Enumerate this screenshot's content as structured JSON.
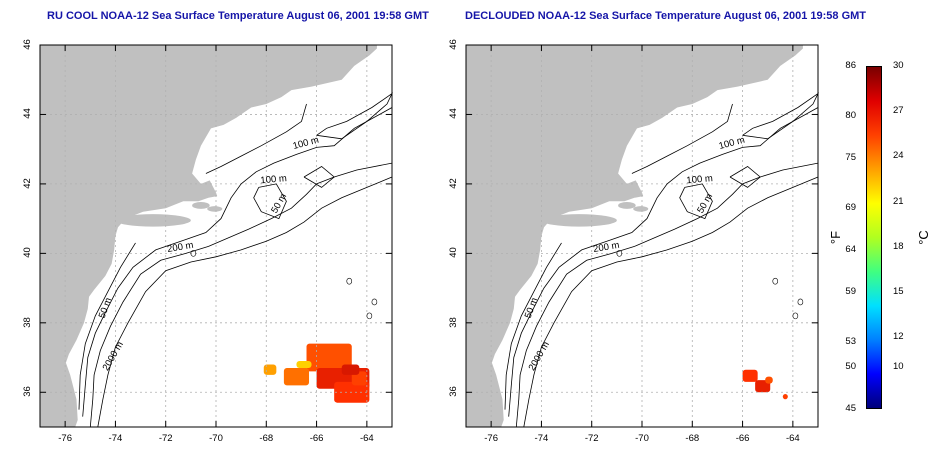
{
  "panels": [
    {
      "title": "RU COOL NOAA-12 Sea Surface Temperature August 06, 2001 19:58 GMT",
      "title_color": "#1515a8",
      "contour_labels": [
        "100 m",
        "100 m",
        "50 m",
        "200 m",
        "50 m",
        "2000 m"
      ],
      "x_ticks": [
        "-76",
        "-74",
        "-72",
        "-70",
        "-68",
        "-66",
        "-64"
      ],
      "y_ticks": [
        "46",
        "44",
        "42",
        "40",
        "38",
        "36"
      ]
    },
    {
      "title": "DECLOUDED NOAA-12 Sea Surface Temperature August 06, 2001 19:58 GMT",
      "title_color": "#1515a8",
      "contour_labels": [
        "100 m",
        "100 m",
        "50 m",
        "200 m",
        "50 m",
        "2000 m"
      ],
      "x_ticks": [
        "-76",
        "-74",
        "-72",
        "-70",
        "-68",
        "-66",
        "-64"
      ],
      "y_ticks": [
        "46",
        "44",
        "42",
        "40",
        "38",
        "36"
      ]
    }
  ],
  "colorbar": {
    "fahrenheit_label": "°F",
    "celsius_label": "°C",
    "fahrenheit_ticks": [
      "86",
      "80",
      "75",
      "69",
      "64",
      "59",
      "53",
      "50",
      "45"
    ],
    "celsius_ticks": [
      "30",
      "27",
      "24",
      "21",
      "18",
      "15",
      "12",
      "10"
    ],
    "celsius_tick_values": [
      30,
      27,
      24,
      21,
      18,
      15,
      12,
      10
    ],
    "fahrenheit_tick_values": [
      86,
      80,
      75,
      69,
      64,
      59,
      53,
      50,
      45
    ],
    "range_f": [
      45,
      86
    ],
    "colors": [
      "#00007a",
      "#0000ff",
      "#0080ff",
      "#00e0ff",
      "#40ff80",
      "#b0ff20",
      "#ffff00",
      "#ffa000",
      "#ff4000",
      "#e00000",
      "#7a0000"
    ]
  },
  "map": {
    "land_color": "#c0c0c0",
    "sea_color": "#ffffff",
    "grid_color": "#b0b0b0",
    "contour_color": "#000000"
  }
}
